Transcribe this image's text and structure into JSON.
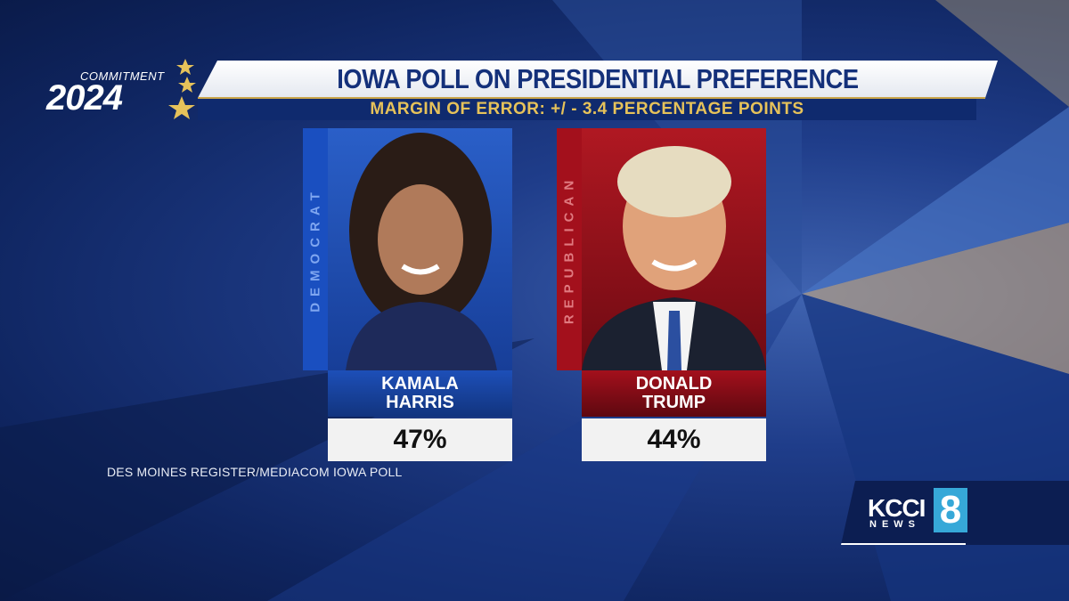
{
  "branding": {
    "line1": "COMMITMENT",
    "line2": "2024"
  },
  "header": {
    "title": "IOWA POLL ON PRESIDENTIAL PREFERENCE",
    "subtitle": "MARGIN OF ERROR: +/ - 3.4 PERCENTAGE POINTS"
  },
  "candidates": [
    {
      "party": "DEMOCRAT",
      "name": [
        "KAMALA",
        "HARRIS"
      ],
      "result": "47%"
    },
    {
      "party": "REPUBLICAN",
      "name": [
        "DONALD",
        "TRUMP"
      ],
      "result": "44%"
    }
  ],
  "source": "DES MOINES REGISTER/MEDIACOM IOWA POLL",
  "logo": {
    "station": "KCCI",
    "sub": "NEWS",
    "channel": "8"
  }
}
